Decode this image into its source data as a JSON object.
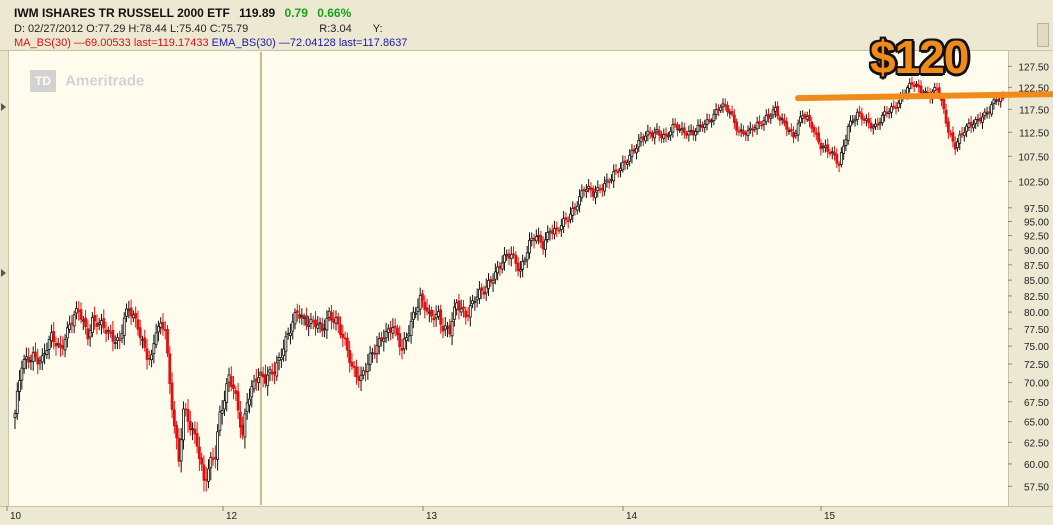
{
  "header": {
    "symbol_line": "IWM ISHARES TR RUSSELL 2000 ETF",
    "last_price": "119.89",
    "change": "0.79",
    "change_pct": "0.66%",
    "ohlc_line": "D: 02/27/2012 O:77.29 H:78.44 L:75.40 C:75.79",
    "r_label": "R:3.04",
    "y_label": "Y:",
    "ma_line": "MA_BS(30) —69.00533 last=119.17433",
    "ema_line": "EMA_BS(30) —72.04128 last=117.8637"
  },
  "logo": {
    "box": "TD",
    "text": "Ameritrade"
  },
  "annotation": {
    "label": "$120",
    "level": 120.5,
    "color": "#f08a1a"
  },
  "colors": {
    "up": "#111111",
    "down": "#e01010",
    "cursor": "#8a7a2a",
    "bg": "#fffcee"
  },
  "chart_data": {
    "type": "candlestick",
    "title": "IWM ISHARES TR RUSSELL 2000 ETF",
    "xlabel": "",
    "ylabel": "",
    "x_ticks": [
      "10",
      "12",
      "13",
      "14",
      "15"
    ],
    "y_ticks": [
      57.5,
      60,
      62.5,
      65,
      67.5,
      70,
      72.5,
      75,
      77.5,
      80,
      82.5,
      85,
      87.5,
      90,
      92.5,
      95,
      97.5,
      102.5,
      107.5,
      112.5,
      117.5,
      122.5,
      127.5
    ],
    "y_tick_labels": [
      "57.50",
      "60.00",
      "62.50",
      "65.00",
      "67.50",
      "70.00",
      "72.50",
      "75.00",
      "77.50",
      "80.00",
      "82.50",
      "85.00",
      "87.50",
      "90.00",
      "92.50",
      "95.00",
      "97.50",
      "102.50",
      "107.50",
      "112.50",
      "117.50",
      "122.50",
      "127.50"
    ],
    "scale": "log",
    "ylim": [
      55.5,
      131
    ],
    "grid": false,
    "cursor": {
      "date": "02/27/2012",
      "open": 77.29,
      "high": 78.44,
      "low": 75.4,
      "close": 75.79
    },
    "waypoints": [
      [
        0,
        66
      ],
      [
        3,
        72
      ],
      [
        8,
        74
      ],
      [
        12,
        73
      ],
      [
        16,
        76
      ],
      [
        20,
        75
      ],
      [
        24,
        78
      ],
      [
        28,
        80
      ],
      [
        32,
        77
      ],
      [
        34,
        79
      ],
      [
        40,
        77
      ],
      [
        46,
        76
      ],
      [
        48,
        79
      ],
      [
        50,
        80
      ],
      [
        54,
        78
      ],
      [
        58,
        74
      ],
      [
        60,
        73
      ],
      [
        62,
        77
      ],
      [
        66,
        78
      ],
      [
        68,
        70
      ],
      [
        72,
        60
      ],
      [
        74,
        66
      ],
      [
        78,
        64
      ],
      [
        80,
        63
      ],
      [
        83,
        58
      ],
      [
        85,
        59
      ],
      [
        88,
        61
      ],
      [
        90,
        66
      ],
      [
        94,
        71
      ],
      [
        96,
        69
      ],
      [
        100,
        63
      ],
      [
        102,
        68
      ],
      [
        106,
        71
      ],
      [
        110,
        70
      ],
      [
        114,
        72
      ],
      [
        118,
        75
      ],
      [
        121,
        77
      ],
      [
        124,
        80
      ],
      [
        128,
        79
      ],
      [
        132,
        78
      ],
      [
        135,
        77
      ],
      [
        138,
        80
      ],
      [
        141,
        79
      ],
      [
        144,
        76
      ],
      [
        148,
        72
      ],
      [
        152,
        71
      ],
      [
        154,
        72
      ],
      [
        158,
        74
      ],
      [
        162,
        77
      ],
      [
        166,
        78
      ],
      [
        170,
        74
      ],
      [
        175,
        80
      ],
      [
        178,
        82
      ],
      [
        182,
        79
      ],
      [
        186,
        80
      ],
      [
        188,
        78
      ],
      [
        191,
        77
      ],
      [
        194,
        81
      ],
      [
        198,
        80
      ],
      [
        202,
        82
      ],
      [
        206,
        83
      ],
      [
        210,
        86
      ],
      [
        214,
        88
      ],
      [
        218,
        89
      ],
      [
        222,
        87
      ],
      [
        226,
        91
      ],
      [
        229,
        92
      ],
      [
        232,
        91
      ],
      [
        235,
        94
      ],
      [
        238,
        93
      ],
      [
        242,
        95
      ],
      [
        246,
        98
      ],
      [
        250,
        101
      ],
      [
        254,
        100
      ],
      [
        258,
        102
      ],
      [
        262,
        103
      ],
      [
        266,
        105
      ],
      [
        270,
        108
      ],
      [
        274,
        110
      ],
      [
        278,
        112
      ],
      [
        282,
        113
      ],
      [
        286,
        111
      ],
      [
        290,
        114
      ],
      [
        294,
        113
      ],
      [
        298,
        112
      ],
      [
        302,
        114
      ],
      [
        306,
        116
      ],
      [
        310,
        118
      ],
      [
        314,
        117
      ],
      [
        318,
        113
      ],
      [
        322,
        112
      ],
      [
        326,
        114
      ],
      [
        330,
        116
      ],
      [
        334,
        117
      ],
      [
        336,
        115
      ],
      [
        339,
        114
      ],
      [
        342,
        112
      ],
      [
        346,
        116
      ],
      [
        350,
        114
      ],
      [
        354,
        110
      ],
      [
        358,
        108
      ],
      [
        362,
        106
      ],
      [
        366,
        114
      ],
      [
        370,
        116
      ],
      [
        374,
        115
      ],
      [
        378,
        114
      ],
      [
        382,
        116
      ],
      [
        386,
        118
      ],
      [
        390,
        121
      ],
      [
        394,
        123
      ],
      [
        398,
        122
      ],
      [
        402,
        121
      ],
      [
        405,
        122
      ],
      [
        408,
        117
      ],
      [
        410,
        113
      ],
      [
        413,
        110
      ],
      [
        416,
        112
      ],
      [
        420,
        114
      ],
      [
        424,
        116
      ],
      [
        428,
        117
      ],
      [
        431,
        119.5
      ],
      [
        434,
        120
      ]
    ],
    "series_length": 435
  },
  "x_axis": {
    "labels": [
      "10",
      "12",
      "13",
      "14",
      "15"
    ]
  }
}
